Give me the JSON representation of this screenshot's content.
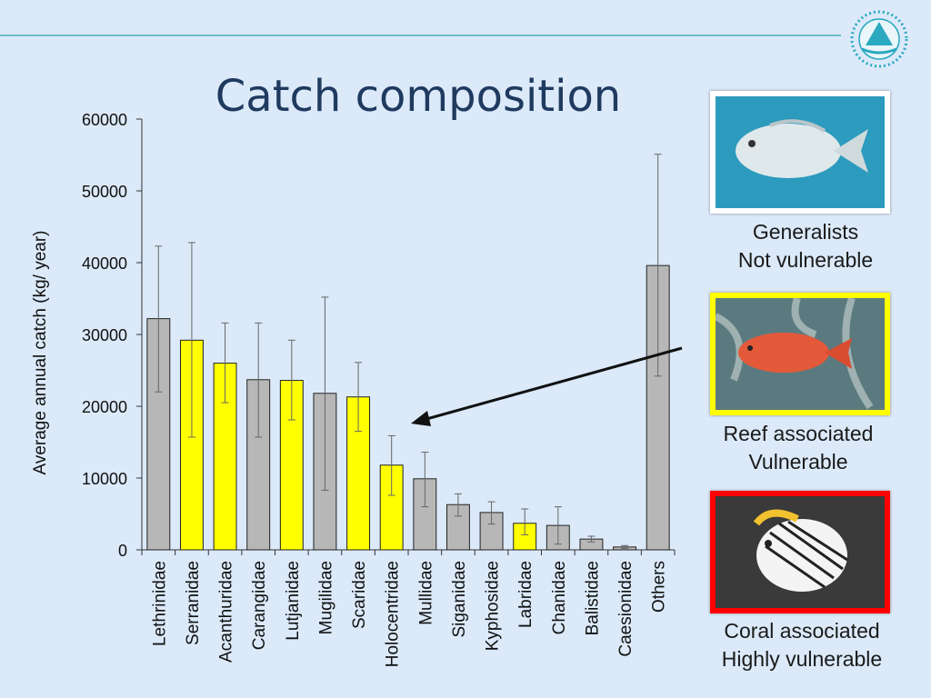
{
  "slide": {
    "title": "Catch composition"
  },
  "panels": [
    {
      "line1": "Generalists",
      "line2": "Not vulnerable",
      "frame_color": "#ffffff",
      "fish_icon": "emperor-fish-icon"
    },
    {
      "line1": "Reef associated",
      "line2": "Vulnerable",
      "frame_color": "#ffff00",
      "fish_icon": "grouper-fish-icon"
    },
    {
      "line1": "Coral associated",
      "line2": "Highly vulnerable",
      "frame_color": "#ff0000",
      "fish_icon": "butterflyfish-icon"
    }
  ],
  "colors": {
    "gray_bar": "#b7b7b7",
    "yellow_bar": "#ffff00",
    "title": "#1f3a5f",
    "background": "#dbe9f9"
  },
  "chart_data": {
    "type": "bar",
    "ylabel": "Average annual catch (kg/ year)",
    "ylim": [
      0,
      60000
    ],
    "yticks": [
      "0",
      "10000",
      "20000",
      "30000",
      "40000",
      "50000",
      "60000"
    ],
    "categories": [
      "Lethrinidae",
      "Serranidae",
      "Acanthuridae",
      "Carangidae",
      "Lutjanidae",
      "Mugilidae",
      "Scaridae",
      "Holocentridae",
      "Mullidae",
      "Siganidae",
      "Kyphosidae",
      "Labridae",
      "Chanidae",
      "Balistidae",
      "Caesionidae",
      "Others"
    ],
    "values": [
      32200,
      29200,
      26000,
      23700,
      23600,
      21800,
      21300,
      11800,
      9900,
      6300,
      5200,
      3700,
      3400,
      1500,
      400,
      39600
    ],
    "error_low": [
      22000,
      15700,
      20500,
      15700,
      18100,
      8300,
      16500,
      7600,
      6000,
      4700,
      3600,
      2100,
      800,
      1100,
      200,
      24200
    ],
    "error_high": [
      42300,
      42800,
      31600,
      31600,
      29200,
      35200,
      26100,
      15900,
      13600,
      7800,
      6700,
      5700,
      6000,
      1900,
      600,
      55100
    ],
    "highlighted": [
      false,
      true,
      true,
      false,
      true,
      false,
      true,
      true,
      false,
      false,
      false,
      true,
      false,
      false,
      false,
      false
    ],
    "grid": false,
    "annotation": "arrow from reef-associated photo pointing to Holocentridae bar"
  }
}
